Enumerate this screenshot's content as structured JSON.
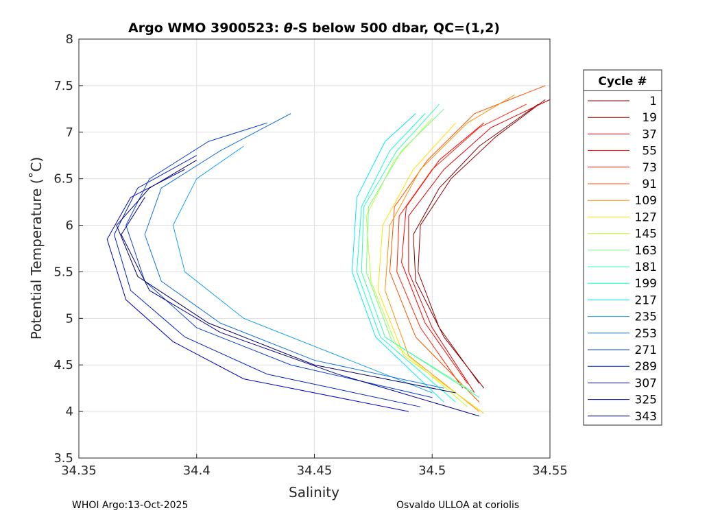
{
  "chart_data": {
    "type": "line",
    "title": "Argo WMO 3900523: θ-S below 500 dbar,  QC=(1,2)",
    "title_parts": {
      "pre": "Argo WMO 3900523: ",
      "theta": "θ",
      "post": "-S below 500 dbar,  QC=(1,2)"
    },
    "xlabel": "Salinity",
    "ylabel": "Potential Temperature (˚C)",
    "xlim": [
      34.35,
      34.55
    ],
    "ylim": [
      3.5,
      8
    ],
    "xticks": [
      "34.35",
      "34.4",
      "34.45",
      "34.5",
      "34.55"
    ],
    "yticks": [
      "3.5",
      "4",
      "4.5",
      "5",
      "5.5",
      "6",
      "6.5",
      "7",
      "7.5",
      "8"
    ],
    "grid": true,
    "legend": {
      "title": "Cycle #",
      "placement": "right"
    },
    "series": [
      {
        "name": "1",
        "color": "#7f0000",
        "points": [
          [
            34.522,
            4.25
          ],
          [
            34.505,
            4.8
          ],
          [
            34.493,
            5.4
          ],
          [
            34.492,
            5.9
          ],
          [
            34.503,
            6.4
          ],
          [
            34.52,
            6.85
          ],
          [
            34.545,
            7.3
          ]
        ]
      },
      {
        "name": "19",
        "color": "#9a0000",
        "points": [
          [
            34.52,
            4.3
          ],
          [
            34.503,
            4.9
          ],
          [
            34.494,
            5.5
          ],
          [
            34.495,
            6.0
          ],
          [
            34.508,
            6.5
          ],
          [
            34.527,
            6.95
          ],
          [
            34.548,
            7.35
          ]
        ]
      },
      {
        "name": "37",
        "color": "#e00000",
        "points": [
          [
            34.518,
            4.2
          ],
          [
            34.5,
            4.9
          ],
          [
            34.49,
            5.5
          ],
          [
            34.49,
            6.1
          ],
          [
            34.505,
            6.6
          ],
          [
            34.525,
            7.05
          ],
          [
            34.55,
            7.35
          ]
        ]
      },
      {
        "name": "55",
        "color": "#ff0000",
        "points": [
          [
            34.515,
            4.3
          ],
          [
            34.497,
            4.95
          ],
          [
            34.487,
            5.6
          ],
          [
            34.489,
            6.2
          ],
          [
            34.503,
            6.7
          ],
          [
            34.522,
            7.1
          ]
        ]
      },
      {
        "name": "73",
        "color": "#ff2000",
        "points": [
          [
            34.513,
            4.25
          ],
          [
            34.495,
            4.9
          ],
          [
            34.485,
            5.5
          ],
          [
            34.486,
            6.1
          ],
          [
            34.5,
            6.6
          ],
          [
            34.52,
            7.05
          ],
          [
            34.54,
            7.3
          ]
        ]
      },
      {
        "name": "91",
        "color": "#ff5000",
        "points": [
          [
            34.52,
            4.1
          ],
          [
            34.493,
            4.8
          ],
          [
            34.482,
            5.5
          ],
          [
            34.484,
            6.2
          ],
          [
            34.498,
            6.7
          ],
          [
            34.518,
            7.2
          ],
          [
            34.548,
            7.5
          ]
        ]
      },
      {
        "name": "109",
        "color": "#ff9000",
        "points": [
          [
            34.52,
            4.0
          ],
          [
            34.49,
            4.6
          ],
          [
            34.48,
            5.3
          ],
          [
            34.482,
            6.0
          ],
          [
            34.495,
            6.6
          ],
          [
            34.515,
            7.1
          ],
          [
            34.535,
            7.4
          ]
        ]
      },
      {
        "name": "127",
        "color": "#ffe000",
        "points": [
          [
            34.522,
            3.98
          ],
          [
            34.488,
            4.6
          ],
          [
            34.477,
            5.3
          ],
          [
            34.479,
            6.0
          ],
          [
            34.492,
            6.6
          ],
          [
            34.51,
            7.1
          ]
        ]
      },
      {
        "name": "145",
        "color": "#c0ff30",
        "points": [
          [
            34.515,
            4.05
          ],
          [
            34.485,
            4.7
          ],
          [
            34.474,
            5.4
          ],
          [
            34.472,
            6.1
          ],
          [
            34.484,
            6.7
          ],
          [
            34.5,
            7.15
          ]
        ]
      },
      {
        "name": "163",
        "color": "#70ff80",
        "points": [
          [
            34.518,
            4.2
          ],
          [
            34.483,
            4.75
          ],
          [
            34.472,
            5.5
          ],
          [
            34.473,
            6.2
          ],
          [
            34.487,
            6.8
          ],
          [
            34.505,
            7.25
          ]
        ]
      },
      {
        "name": "181",
        "color": "#30ffb0",
        "points": [
          [
            34.52,
            4.15
          ],
          [
            34.48,
            4.8
          ],
          [
            34.47,
            5.5
          ],
          [
            34.471,
            6.2
          ],
          [
            34.485,
            6.8
          ],
          [
            34.503,
            7.3
          ]
        ]
      },
      {
        "name": "199",
        "color": "#10ffd0",
        "points": [
          [
            34.51,
            4.1
          ],
          [
            34.478,
            4.8
          ],
          [
            34.468,
            5.5
          ],
          [
            34.47,
            6.2
          ],
          [
            34.482,
            6.8
          ],
          [
            34.497,
            7.2
          ]
        ]
      },
      {
        "name": "217",
        "color": "#00e8ff",
        "points": [
          [
            34.505,
            4.1
          ],
          [
            34.476,
            4.8
          ],
          [
            34.466,
            5.5
          ],
          [
            34.468,
            6.3
          ],
          [
            34.48,
            6.9
          ],
          [
            34.493,
            7.2
          ]
        ]
      },
      {
        "name": "235",
        "color": "#10a0f0",
        "points": [
          [
            34.5,
            4.2
          ],
          [
            34.46,
            4.6
          ],
          [
            34.42,
            5.0
          ],
          [
            34.395,
            5.5
          ],
          [
            34.39,
            6.0
          ],
          [
            34.4,
            6.5
          ],
          [
            34.42,
            6.85
          ]
        ]
      },
      {
        "name": "253",
        "color": "#1070e0",
        "points": [
          [
            34.505,
            4.25
          ],
          [
            34.45,
            4.55
          ],
          [
            34.41,
            4.95
          ],
          [
            34.385,
            5.4
          ],
          [
            34.378,
            5.9
          ],
          [
            34.385,
            6.4
          ],
          [
            34.41,
            6.8
          ],
          [
            34.44,
            7.2
          ]
        ]
      },
      {
        "name": "271",
        "color": "#0a40d8",
        "points": [
          [
            34.5,
            4.15
          ],
          [
            34.44,
            4.5
          ],
          [
            34.4,
            4.9
          ],
          [
            34.378,
            5.4
          ],
          [
            34.37,
            6.0
          ],
          [
            34.38,
            6.5
          ],
          [
            34.405,
            6.9
          ],
          [
            34.43,
            7.1
          ]
        ]
      },
      {
        "name": "289",
        "color": "#0020c8",
        "points": [
          [
            34.495,
            4.05
          ],
          [
            34.43,
            4.4
          ],
          [
            34.395,
            4.8
          ],
          [
            34.372,
            5.3
          ],
          [
            34.365,
            5.9
          ],
          [
            34.375,
            6.4
          ],
          [
            34.4,
            6.75
          ]
        ]
      },
      {
        "name": "307",
        "color": "#0000c0",
        "points": [
          [
            34.49,
            4.0
          ],
          [
            34.42,
            4.35
          ],
          [
            34.39,
            4.75
          ],
          [
            34.37,
            5.2
          ],
          [
            34.362,
            5.85
          ],
          [
            34.372,
            6.3
          ],
          [
            34.395,
            6.6
          ]
        ]
      },
      {
        "name": "325",
        "color": "#000090",
        "points": [
          [
            34.52,
            3.95
          ],
          [
            34.46,
            4.4
          ],
          [
            34.41,
            4.85
          ],
          [
            34.38,
            5.3
          ],
          [
            34.368,
            5.9
          ],
          [
            34.378,
            6.3
          ]
        ]
      },
      {
        "name": "343",
        "color": "#000060",
        "points": [
          [
            34.51,
            4.2
          ],
          [
            34.45,
            4.5
          ],
          [
            34.405,
            4.95
          ],
          [
            34.375,
            5.45
          ],
          [
            34.366,
            6.0
          ],
          [
            34.38,
            6.4
          ],
          [
            34.4,
            6.7
          ]
        ]
      }
    ]
  },
  "footer": {
    "left": "WHOI Argo:13-Oct-2025",
    "right": "Osvaldo ULLOA at coriolis"
  }
}
